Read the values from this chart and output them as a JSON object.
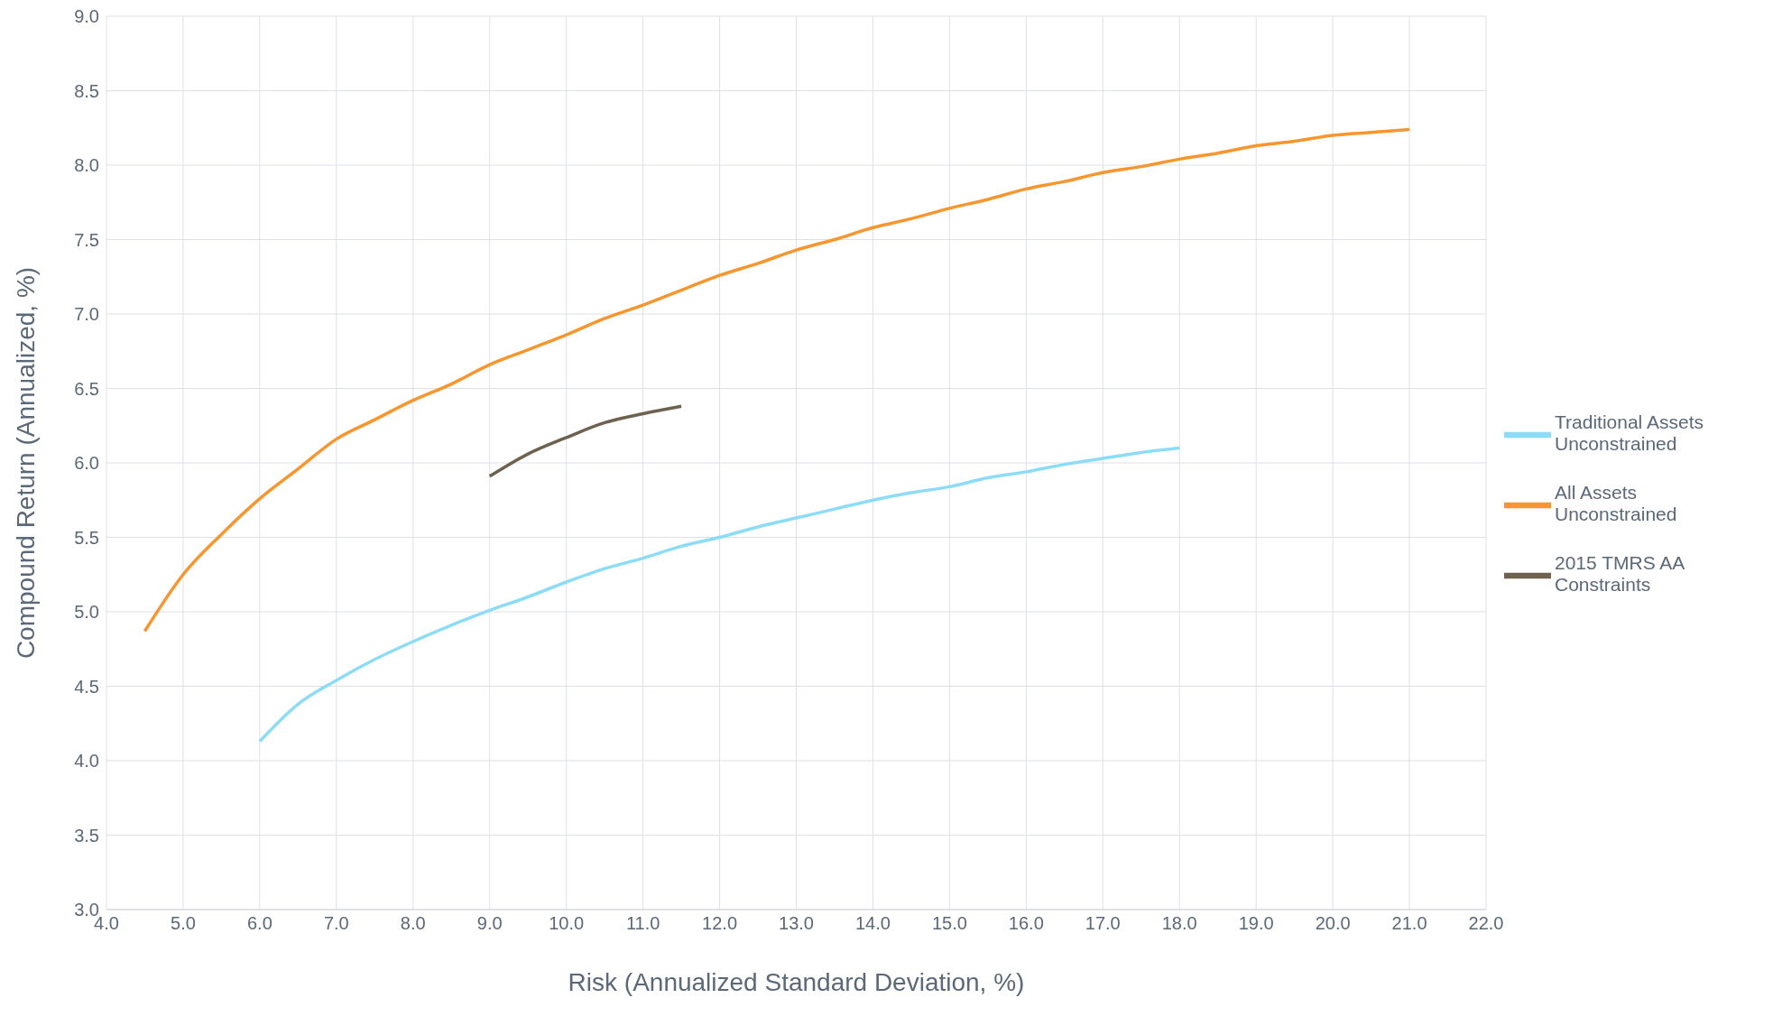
{
  "chart_data": {
    "type": "line",
    "xlabel": "Risk (Annualized Standard Deviation, %)",
    "ylabel": "Compound Return (Annualized, %)",
    "xlim": [
      4,
      22
    ],
    "ylim": [
      3,
      9
    ],
    "xticks": [
      {
        "value": 4,
        "label": "4.0"
      },
      {
        "value": 5,
        "label": "5.0"
      },
      {
        "value": 6,
        "label": "6.0"
      },
      {
        "value": 7,
        "label": "7.0"
      },
      {
        "value": 8,
        "label": "8.0"
      },
      {
        "value": 9,
        "label": "9.0"
      },
      {
        "value": 10,
        "label": "10.0"
      },
      {
        "value": 11,
        "label": "11.0"
      },
      {
        "value": 12,
        "label": "12.0"
      },
      {
        "value": 13,
        "label": "13.0"
      },
      {
        "value": 14,
        "label": "14.0"
      },
      {
        "value": 15,
        "label": "15.0"
      },
      {
        "value": 16,
        "label": "16.0"
      },
      {
        "value": 17,
        "label": "17.0"
      },
      {
        "value": 18,
        "label": "18.0"
      },
      {
        "value": 19,
        "label": "19.0"
      },
      {
        "value": 20,
        "label": "20.0"
      },
      {
        "value": 21,
        "label": "21.0"
      },
      {
        "value": 22,
        "label": "22.0"
      }
    ],
    "yticks": [
      {
        "value": 3,
        "label": "3.0"
      },
      3.5,
      {
        "value": 4,
        "label": "4.0"
      },
      4.5,
      {
        "value": 5,
        "label": "5.0"
      },
      5.5,
      {
        "value": 6,
        "label": "6.0"
      },
      6.5,
      {
        "value": 7,
        "label": "7.0"
      },
      7.5,
      {
        "value": 8,
        "label": "8.0"
      },
      8.5,
      {
        "value": 9,
        "label": "9.0"
      }
    ],
    "grid": true,
    "legend": "right",
    "marker": "none",
    "line_style": "solid",
    "series": [
      {
        "name": "Traditional Assets Unconstrained",
        "color": "#8ddcf7",
        "x": [
          6,
          6.5,
          7,
          7.5,
          8,
          8.5,
          9,
          9.5,
          10,
          10.5,
          11,
          11.5,
          12,
          12.5,
          13,
          13.5,
          14,
          14.5,
          15,
          15.5,
          16,
          16.5,
          17,
          17.5,
          18
        ],
        "values": [
          4.13,
          4.38,
          4.54,
          4.68,
          4.8,
          4.91,
          5.01,
          5.1,
          5.2,
          5.29,
          5.36,
          5.44,
          5.5,
          5.57,
          5.63,
          5.69,
          5.75,
          5.8,
          5.84,
          5.9,
          5.94,
          5.99,
          6.03,
          6.07,
          6.1
        ]
      },
      {
        "name": "All Assets Unconstrained",
        "color": "#f7962e",
        "x": [
          4.5,
          5,
          5.5,
          6,
          6.5,
          7,
          7.5,
          8,
          8.5,
          9,
          9.5,
          10,
          10.5,
          11,
          11.5,
          12,
          12.5,
          13,
          13.5,
          14,
          14.5,
          15,
          15.5,
          16,
          16.5,
          17,
          17.5,
          18,
          18.5,
          19,
          19.5,
          20,
          20.5,
          21
        ],
        "values": [
          4.87,
          5.25,
          5.52,
          5.76,
          5.96,
          6.16,
          6.29,
          6.42,
          6.53,
          6.66,
          6.76,
          6.86,
          6.97,
          7.06,
          7.16,
          7.26,
          7.34,
          7.43,
          7.5,
          7.58,
          7.64,
          7.71,
          7.77,
          7.84,
          7.89,
          7.95,
          7.99,
          8.04,
          8.08,
          8.13,
          8.16,
          8.2,
          8.22,
          8.24
        ]
      },
      {
        "name": "2015 TMRS AA Constraints",
        "color": "#6e6150",
        "x": [
          9,
          9.5,
          10,
          10.5,
          11,
          11.5
        ],
        "values": [
          5.91,
          6.06,
          6.17,
          6.27,
          6.33,
          6.38
        ]
      }
    ]
  }
}
